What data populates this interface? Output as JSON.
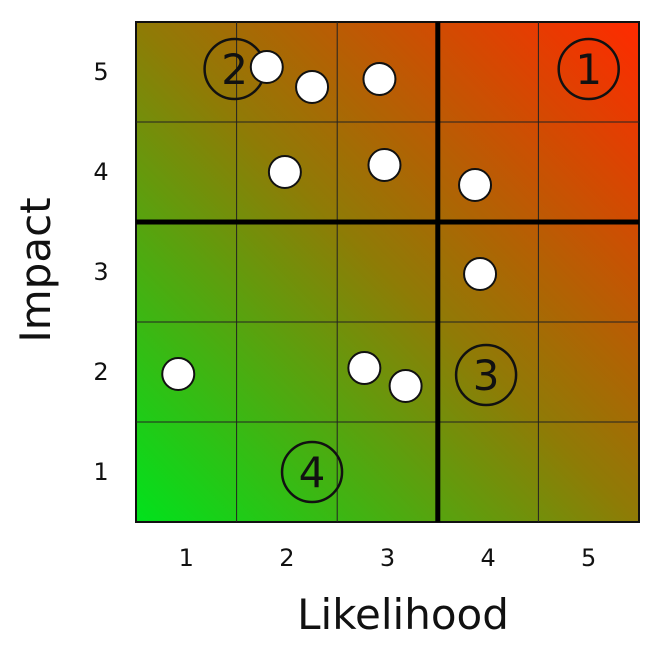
{
  "chart_data": {
    "type": "scatter",
    "title": "",
    "xlabel": "Likelihood",
    "ylabel": "Impact",
    "x_ticks": [
      "1",
      "2",
      "3",
      "4",
      "5"
    ],
    "y_ticks": [
      "1",
      "2",
      "3",
      "4",
      "5"
    ],
    "xlim": [
      0.5,
      5.5
    ],
    "ylim": [
      0.5,
      5.5
    ],
    "grid": true,
    "background_gradient": {
      "low_risk_color": "#00e21c",
      "mid_color": "#8f7b06",
      "high_risk_color": "#ff2a00"
    },
    "quadrant_dividers": {
      "x": 3.5,
      "y": 3.5
    },
    "quadrant_labels": [
      {
        "label": "1",
        "x": 5.0,
        "y": 5.03
      },
      {
        "label": "2",
        "x": 1.48,
        "y": 5.03
      },
      {
        "label": "3",
        "x": 3.98,
        "y": 1.97
      },
      {
        "label": "4",
        "x": 2.25,
        "y": 1.0
      }
    ],
    "points": [
      {
        "x": 1.8,
        "y": 5.05
      },
      {
        "x": 2.25,
        "y": 4.85
      },
      {
        "x": 2.92,
        "y": 4.93
      },
      {
        "x": 1.98,
        "y": 4.0
      },
      {
        "x": 2.97,
        "y": 4.07
      },
      {
        "x": 3.87,
        "y": 3.87
      },
      {
        "x": 3.92,
        "y": 2.98
      },
      {
        "x": 0.92,
        "y": 1.98
      },
      {
        "x": 2.77,
        "y": 2.04
      },
      {
        "x": 3.18,
        "y": 1.86
      }
    ]
  }
}
